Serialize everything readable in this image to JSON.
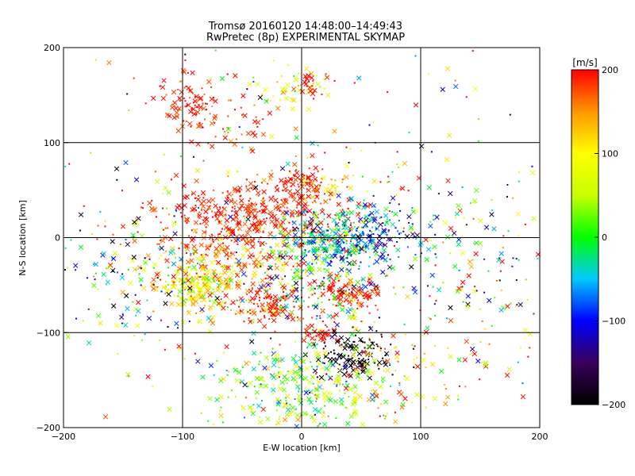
{
  "chart_data": {
    "type": "scatter",
    "title": "Tromsø 20160120 14:48:00–14:49:43",
    "subtitle": "RwPretec (8p) EXPERIMENTAL SKYMAP",
    "xlabel": "E-W location [km]",
    "ylabel": "N-S location [km]",
    "xlim": [
      -200,
      200
    ],
    "ylim": [
      -200,
      200
    ],
    "x_ticks": [
      -200,
      -100,
      0,
      100,
      200
    ],
    "y_ticks": [
      -200,
      -100,
      0,
      100,
      200
    ],
    "x_tick_labels": [
      "−200",
      "−100",
      "0",
      "100",
      "200"
    ],
    "y_tick_labels": [
      "−200",
      "−100",
      "0",
      "100",
      "200"
    ],
    "grid": true,
    "markers": [
      "x",
      "dot"
    ],
    "colorbar": {
      "label": "[m/s]",
      "min": -200,
      "max": 200,
      "ticks": [
        200,
        100,
        0,
        -100,
        -200
      ],
      "tick_labels": [
        "200",
        "100",
        "0",
        "−100",
        "−200"
      ],
      "colormap": [
        "#000000",
        "#3a005a",
        "#0000ff",
        "#00c8ff",
        "#00ff00",
        "#c8ff00",
        "#ffff00",
        "#ff9600",
        "#ff0000"
      ]
    },
    "clusters": [
      {
        "x": -95,
        "y": 140,
        "sx": 10,
        "sy": 15,
        "n": 70,
        "v": 190,
        "vs": 15
      },
      {
        "x": -55,
        "y": 120,
        "sx": 20,
        "sy": 15,
        "n": 40,
        "v": 185,
        "vs": 20
      },
      {
        "x": -10,
        "y": 160,
        "sx": 20,
        "sy": 12,
        "n": 45,
        "v": 105,
        "vs": 30
      },
      {
        "x": 10,
        "y": 160,
        "sx": 7,
        "sy": 8,
        "n": 20,
        "v": 195,
        "vs": 10
      },
      {
        "x": -110,
        "y": 150,
        "sx": 15,
        "sy": 10,
        "n": 15,
        "v": 190,
        "vs": 15
      },
      {
        "x": 0,
        "y": 60,
        "sx": 10,
        "sy": 8,
        "n": 60,
        "v": 195,
        "vs": 10
      },
      {
        "x": 20,
        "y": 50,
        "sx": 12,
        "sy": 8,
        "n": 40,
        "v": 110,
        "vs": 30
      },
      {
        "x": -40,
        "y": 20,
        "sx": 45,
        "sy": 20,
        "n": 450,
        "v": 190,
        "vs": 20
      },
      {
        "x": 30,
        "y": 0,
        "sx": 25,
        "sy": 15,
        "n": 300,
        "v": -40,
        "vs": 60
      },
      {
        "x": 65,
        "y": 5,
        "sx": 18,
        "sy": 15,
        "n": 90,
        "v": -110,
        "vs": 40
      },
      {
        "x": -90,
        "y": -50,
        "sx": 12,
        "sy": 15,
        "n": 130,
        "v": 80,
        "vs": 45
      },
      {
        "x": -60,
        "y": -40,
        "sx": 35,
        "sy": 25,
        "n": 250,
        "v": 150,
        "vs": 50
      },
      {
        "x": -25,
        "y": -70,
        "sx": 15,
        "sy": 10,
        "n": 100,
        "v": 190,
        "vs": 15
      },
      {
        "x": 40,
        "y": -60,
        "sx": 15,
        "sy": 10,
        "n": 110,
        "v": 190,
        "vs": 15
      },
      {
        "x": 10,
        "y": -40,
        "sx": 30,
        "sy": 30,
        "n": 200,
        "v": 0,
        "vs": 90
      },
      {
        "x": 15,
        "y": -100,
        "sx": 8,
        "sy": 6,
        "n": 40,
        "v": 195,
        "vs": 10
      },
      {
        "x": 45,
        "y": -125,
        "sx": 15,
        "sy": 12,
        "n": 130,
        "v": -195,
        "vs": 10
      },
      {
        "x": 0,
        "y": -160,
        "sx": 35,
        "sy": 25,
        "n": 300,
        "v": 30,
        "vs": 60
      },
      {
        "x": 80,
        "y": -140,
        "sx": 30,
        "sy": 30,
        "n": 80,
        "v": 140,
        "vs": 70
      },
      {
        "x": -150,
        "y": -30,
        "sx": 35,
        "sy": 40,
        "n": 140,
        "v": -10,
        "vs": 120
      },
      {
        "x": 150,
        "y": -50,
        "sx": 40,
        "sy": 50,
        "n": 90,
        "v": 50,
        "vs": 130
      },
      {
        "x": 110,
        "y": 0,
        "sx": 40,
        "sy": 40,
        "n": 70,
        "v": -60,
        "vs": 100
      },
      {
        "x": 0,
        "y": 0,
        "sx": 150,
        "sy": 150,
        "n": 400,
        "v": 60,
        "vs": 150
      }
    ]
  }
}
